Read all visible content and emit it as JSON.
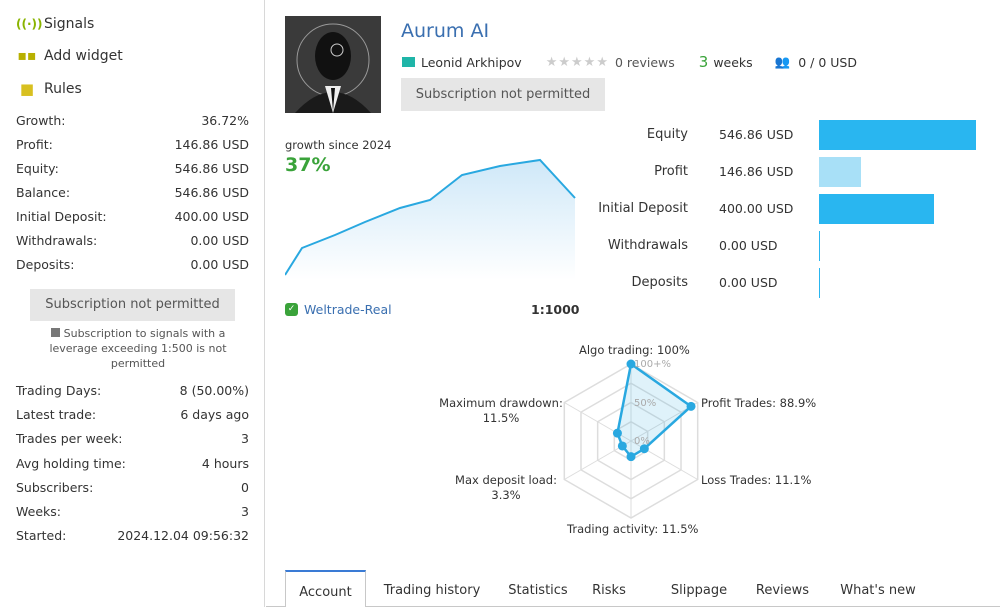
{
  "sidebar": {
    "nav": [
      {
        "label": "Signals",
        "icon": "signal-icon"
      },
      {
        "label": "Add widget",
        "icon": "widget-icon"
      },
      {
        "label": "Rules",
        "icon": "rules-icon"
      }
    ],
    "stats": [
      [
        "Growth:",
        "36.72%"
      ],
      [
        "Profit:",
        "146.86 USD"
      ],
      [
        "Equity:",
        "546.86 USD"
      ],
      [
        "Balance:",
        "546.86 USD"
      ],
      [
        "Initial Deposit:",
        "400.00 USD"
      ],
      [
        "Withdrawals:",
        "0.00 USD"
      ],
      [
        "Deposits:",
        "0.00 USD"
      ]
    ],
    "subscribe_label": "Subscription not permitted",
    "warning": "Subscription to signals with a leverage exceeding 1:500 is not permitted",
    "stats2": [
      [
        "Trading Days:",
        "8 (50.00%)"
      ],
      [
        "Latest trade:",
        "6 days ago"
      ],
      [
        "Trades per week:",
        "3"
      ],
      [
        "Avg holding time:",
        "4 hours"
      ],
      [
        "Subscribers:",
        "0"
      ],
      [
        "Weeks:",
        "3"
      ],
      [
        "Started:",
        "2024.12.04 09:56:32"
      ]
    ]
  },
  "header": {
    "title": "Aurum AI",
    "author": "Leonid Arkhipov",
    "reviews": "0 reviews",
    "rating": 0,
    "weeks_num": "3",
    "weeks_label": "weeks",
    "subscribers": "0 / 0 USD",
    "subscribe_label": "Subscription not permitted"
  },
  "growth": {
    "label": "growth since 2024",
    "value": "37%",
    "broker": "Weltrade-Real",
    "leverage": "1:1000"
  },
  "balances": [
    {
      "label": "Equity",
      "value": "546.86 USD",
      "amount": 546.86,
      "color": "#29b6f0"
    },
    {
      "label": "Profit",
      "value": "146.86 USD",
      "amount": 146.86,
      "color": "#a8e0f7"
    },
    {
      "label": "Initial Deposit",
      "value": "400.00 USD",
      "amount": 400.0,
      "color": "#29b6f0"
    },
    {
      "label": "Withdrawals",
      "value": "0.00 USD",
      "amount": 0,
      "color": "#29b6f0"
    },
    {
      "label": "Deposits",
      "value": "0.00 USD",
      "amount": 0,
      "color": "#29b6f0"
    }
  ],
  "chart_data": {
    "type": "radar",
    "axes": [
      {
        "label": "Algo trading: 100%",
        "value": 100
      },
      {
        "label": "Profit Trades: 88.9%",
        "value": 88.9
      },
      {
        "label": "Loss Trades: 11.1%",
        "value": 11.1
      },
      {
        "label": "Trading activity: 11.5%",
        "value": 11.5
      },
      {
        "label": "Max deposit load: 3.3%",
        "value": 3.3
      },
      {
        "label": "Maximum drawdown: 11.5%",
        "value": 11.5
      }
    ],
    "ticks": [
      "100+%",
      "50%",
      "0%"
    ],
    "color": "#29a8e0"
  },
  "tabs": [
    "Account",
    "Trading history",
    "Statistics",
    "Risks",
    "Slippage",
    "Reviews",
    "What's new"
  ]
}
